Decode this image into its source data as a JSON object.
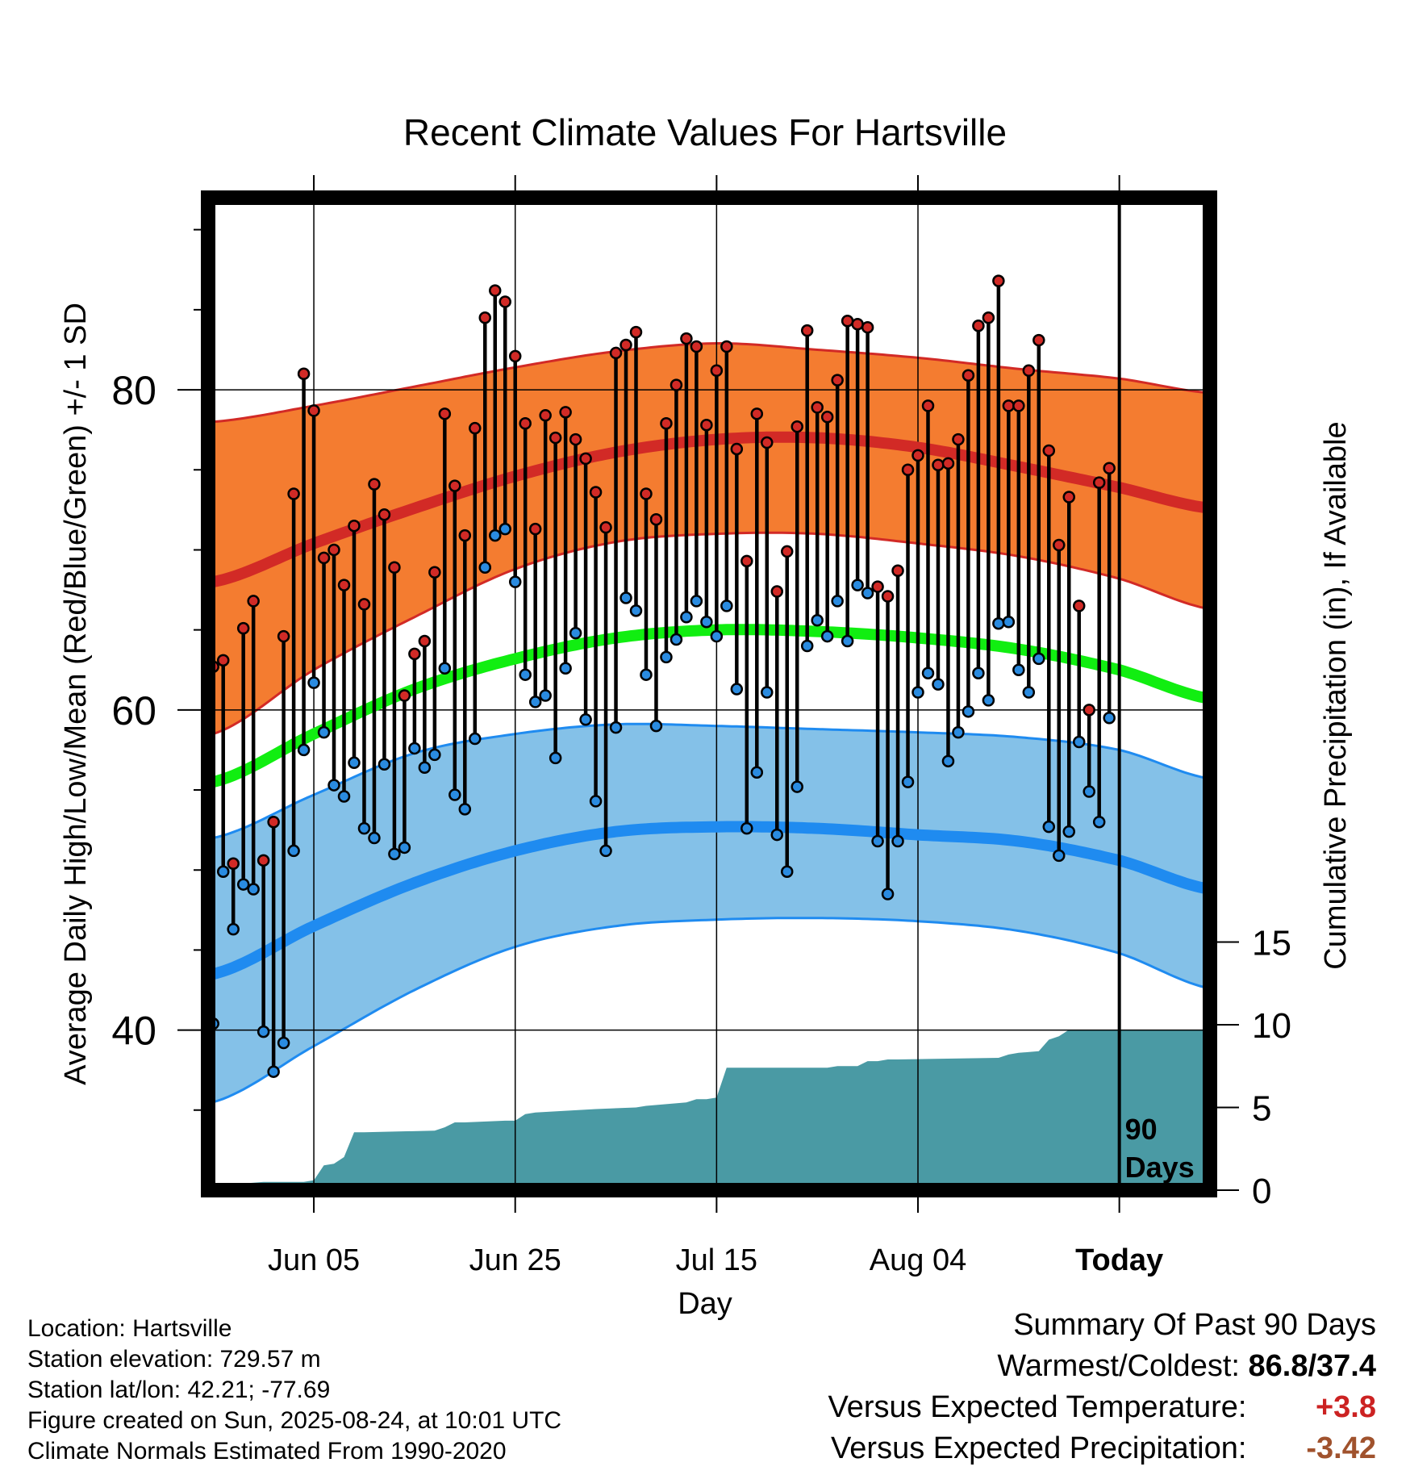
{
  "chart_data": {
    "type": "line",
    "title": "Recent Climate Values For Hartsville",
    "xlabel": "Day",
    "ylabel": "Average Daily High/Low/Mean (Red/Blue/Green) +/- 1 SD",
    "y2label": "Cumulative Precipitation (in), If Available",
    "xticks": [
      "Jun 05",
      "Jun 25",
      "Jul 15",
      "Aug 04",
      "Today"
    ],
    "xtick_days": [
      10,
      30,
      50,
      70,
      90
    ],
    "yticks": [
      40,
      60,
      80
    ],
    "y2ticks": [
      0,
      5,
      10,
      15
    ],
    "ylim": [
      30,
      92
    ],
    "y2lim": [
      0,
      60
    ],
    "xlim": [
      -0.5,
      99
    ],
    "today_day": 90,
    "today_label": "90 Days",
    "colors": {
      "high_band": "#f47c30",
      "high_band_edge": "#d22a26",
      "high_mean": "#d22a26",
      "low_band": "#84c1e8",
      "low_band_edge": "#1f8bf0",
      "low_mean": "#1f8bf0",
      "mean_line": "#11ee11",
      "precip": "#4a9aa4",
      "high_dot": "#d12a26",
      "low_dot": "#2a8be0"
    },
    "normals_days": [
      0,
      10,
      20,
      30,
      40,
      50,
      60,
      70,
      80,
      90,
      99
    ],
    "normal_high": [
      68.0,
      70.4,
      72.6,
      74.6,
      76.1,
      76.9,
      77.0,
      76.4,
      75.2,
      73.9,
      72.6
    ],
    "normal_high_upper": [
      78.0,
      79.0,
      80.2,
      81.4,
      82.4,
      82.9,
      82.5,
      82.0,
      81.3,
      80.7,
      79.8
    ],
    "normal_high_lower": [
      58.5,
      62.5,
      65.8,
      68.8,
      70.5,
      71.0,
      71.0,
      70.4,
      69.6,
      68.2,
      66.3
    ],
    "normal_mean": [
      55.5,
      58.5,
      61.3,
      63.2,
      64.5,
      65.0,
      64.9,
      64.5,
      63.8,
      62.5,
      60.7
    ],
    "normal_low": [
      43.5,
      46.5,
      49.2,
      51.2,
      52.4,
      52.7,
      52.6,
      52.2,
      51.8,
      50.6,
      48.8
    ],
    "normal_low_upper": [
      52.0,
      54.7,
      57.3,
      58.5,
      59.1,
      59.0,
      58.8,
      58.6,
      58.3,
      57.5,
      55.7
    ],
    "normal_low_lower": [
      35.5,
      39.0,
      42.5,
      45.2,
      46.5,
      46.9,
      47.0,
      46.8,
      46.2,
      44.8,
      42.6
    ],
    "daily_high": [
      62.7,
      63.1,
      50.4,
      65.1,
      66.8,
      50.6,
      53.0,
      64.6,
      73.5,
      81.0,
      78.7,
      69.5,
      70.0,
      67.8,
      71.5,
      66.6,
      74.1,
      72.2,
      68.9,
      60.9,
      63.5,
      64.3,
      68.6,
      78.5,
      74.0,
      70.9,
      77.6,
      84.5,
      86.2,
      85.5,
      82.1,
      77.9,
      71.3,
      78.4,
      77.0,
      78.6,
      76.9,
      75.7,
      73.6,
      71.4,
      82.3,
      82.8,
      83.6,
      73.5,
      71.9,
      77.9,
      80.3,
      83.2,
      82.7,
      77.8,
      81.2,
      82.7,
      76.3,
      69.3,
      78.5,
      76.7,
      67.4,
      69.9,
      77.7,
      83.7,
      78.9,
      78.3,
      80.6,
      84.3,
      84.1,
      83.9,
      67.7,
      67.1,
      68.7,
      75.0,
      75.9,
      79.0,
      75.3,
      75.4,
      76.9,
      80.9,
      84.0,
      84.5,
      86.8,
      79.0,
      79.0,
      81.2,
      83.1,
      76.2,
      70.3,
      73.3,
      66.5,
      60.0,
      74.2,
      75.1
    ],
    "daily_low": [
      40.4,
      49.9,
      46.3,
      49.1,
      48.8,
      39.9,
      37.4,
      39.2,
      51.2,
      57.5,
      61.7,
      58.6,
      55.3,
      54.6,
      56.7,
      52.6,
      52.0,
      56.6,
      51.0,
      51.4,
      57.6,
      56.4,
      57.2,
      62.6,
      54.7,
      53.8,
      58.2,
      68.9,
      70.9,
      71.3,
      68.0,
      62.2,
      60.5,
      60.9,
      57.0,
      62.6,
      64.8,
      59.4,
      54.3,
      51.2,
      58.9,
      67.0,
      66.2,
      62.2,
      59.0,
      63.3,
      64.4,
      65.8,
      66.8,
      65.5,
      64.6,
      66.5,
      61.3,
      52.6,
      56.1,
      61.1,
      52.2,
      49.9,
      55.2,
      64.0,
      65.6,
      64.6,
      66.8,
      64.3,
      67.8,
      67.3,
      51.8,
      48.5,
      51.8,
      55.5,
      61.1,
      62.3,
      61.6,
      56.8,
      58.6,
      59.9,
      62.3,
      60.6,
      65.4,
      65.5,
      62.5,
      61.1,
      63.2,
      52.7,
      50.9,
      52.4,
      58.0,
      54.9,
      53.0,
      59.5
    ],
    "precip_x": [
      0,
      1,
      2,
      3,
      5,
      9,
      10,
      11,
      12,
      13,
      14,
      15,
      22,
      23,
      24,
      25,
      29,
      30,
      31,
      32,
      35,
      38,
      42,
      43,
      45,
      47,
      48,
      49,
      50,
      51,
      52,
      61,
      62,
      63,
      64,
      65,
      66,
      67,
      68,
      78,
      79,
      80,
      82,
      83,
      84,
      85,
      86,
      99
    ],
    "precip_y": [
      0.0,
      0.0,
      0.0,
      0.4,
      0.5,
      0.5,
      0.6,
      1.5,
      1.6,
      2.0,
      3.5,
      3.5,
      3.6,
      3.8,
      4.1,
      4.1,
      4.2,
      4.2,
      4.6,
      4.7,
      4.8,
      4.9,
      5.0,
      5.1,
      5.2,
      5.3,
      5.5,
      5.5,
      5.6,
      7.4,
      7.4,
      7.4,
      7.5,
      7.5,
      7.5,
      7.8,
      7.8,
      7.9,
      7.9,
      8.0,
      8.2,
      8.3,
      8.4,
      9.1,
      9.3,
      9.7,
      9.7,
      9.7
    ]
  },
  "info": {
    "location": "Location: Hartsville",
    "elevation": "Station elevation: 729.57 m",
    "latlon": "Station lat/lon: 42.21; -77.69",
    "created": "Figure created on Sun, 2025-08-24, at 10:01 UTC",
    "normals": "Climate Normals Estimated From 1990-2020"
  },
  "summary": {
    "title": "Summary Of Past 90 Days",
    "warm_cold_label": "Warmest/Coldest:",
    "warm_cold_value": "86.8/37.4",
    "temp_label": "Versus Expected Temperature:",
    "temp_value": "+3.8",
    "temp_color": "#cc2222",
    "precip_label": "Versus Expected Precipitation:",
    "precip_value": "-3.42",
    "precip_color": "#a0522d"
  }
}
